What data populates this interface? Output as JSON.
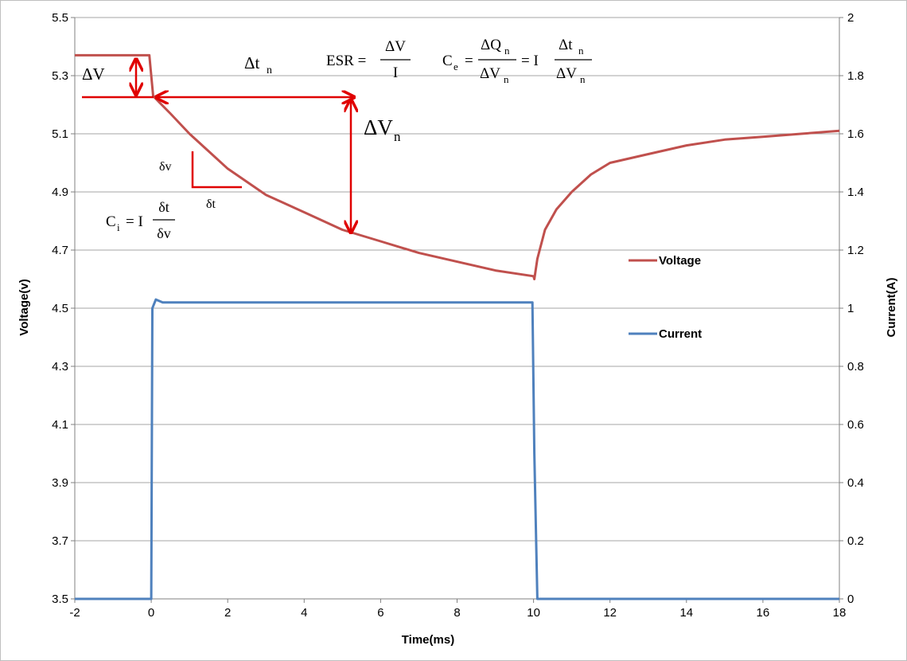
{
  "colors": {
    "voltage": "#c0504d",
    "current": "#4f81bd",
    "annotation": "#e00000",
    "grid": "#a6a6a6"
  },
  "chart_data": {
    "type": "line",
    "xlabel": "Time(ms)",
    "ylabel": "Voltage(v)",
    "y2label": "Current(A)",
    "xlim": [
      -2,
      18
    ],
    "ylim": [
      3.5,
      5.5
    ],
    "y2lim": [
      0,
      2
    ],
    "x_ticks": [
      "-2",
      "0",
      "2",
      "4",
      "6",
      "8",
      "10",
      "12",
      "14",
      "16",
      "18"
    ],
    "y_ticks": [
      "3.5",
      "3.7",
      "3.9",
      "4.1",
      "4.3",
      "4.5",
      "4.7",
      "4.9",
      "5.1",
      "5.3",
      "5.5"
    ],
    "y2_ticks": [
      "0",
      "0.2",
      "0.4",
      "0.6",
      "0.8",
      "1",
      "1.2",
      "1.4",
      "1.6",
      "1.8",
      "2"
    ],
    "grid": "horizontal",
    "legend": {
      "position": "right",
      "entries": [
        "Voltage",
        "Current"
      ]
    },
    "series": [
      {
        "name": "Voltage",
        "axis": "left",
        "x": [
          -2,
          -0.05,
          0,
          0.05,
          0.2,
          0.5,
          1,
          1.5,
          2,
          3,
          4,
          5,
          6,
          7,
          8,
          9,
          10,
          10.02,
          10.1,
          10.3,
          10.6,
          11,
          11.5,
          12,
          13,
          14,
          15,
          16,
          17,
          18
        ],
        "values": [
          5.37,
          5.37,
          5.3,
          5.23,
          5.21,
          5.17,
          5.1,
          5.04,
          4.98,
          4.89,
          4.83,
          4.77,
          4.73,
          4.69,
          4.66,
          4.63,
          4.61,
          4.6,
          4.67,
          4.77,
          4.84,
          4.9,
          4.96,
          5,
          5.03,
          5.06,
          5.08,
          5.09,
          5.1,
          5.11
        ]
      },
      {
        "name": "Current",
        "axis": "right",
        "x": [
          -2,
          0,
          0.03,
          0.12,
          0.3,
          1,
          3,
          5,
          7,
          9,
          9.97,
          10.02,
          10.1,
          12,
          14,
          16,
          18
        ],
        "values": [
          0,
          0,
          1.0,
          1.03,
          1.02,
          1.02,
          1.02,
          1.02,
          1.02,
          1.02,
          1.02,
          0.5,
          0,
          0,
          0,
          0,
          0
        ]
      }
    ],
    "annotations": {
      "delta_v": "ΔV",
      "delta_tn": "Δt",
      "delta_tn_sub": "n",
      "delta_vn": "ΔV",
      "delta_vn_sub": "n",
      "small_dv": "δv",
      "small_dt": "δt",
      "esr_lhs": "ESR =",
      "esr_num": "ΔV",
      "esr_den": "I",
      "ce_lhs": "C",
      "ce_sub": "e",
      "ce_eq": "=",
      "ce_num": "ΔQ",
      "ce_num_sub": "n",
      "ce_den": "ΔV",
      "ce_den_sub": "n",
      "ce_eq2": "= I",
      "ce_num2": "Δt",
      "ce_num2_sub": "n",
      "ce_den2": "ΔV",
      "ce_den2_sub": "n",
      "ci_lhs": "C",
      "ci_sub": "i",
      "ci_eq": "= I",
      "ci_num": "δt",
      "ci_den": "δv"
    }
  }
}
